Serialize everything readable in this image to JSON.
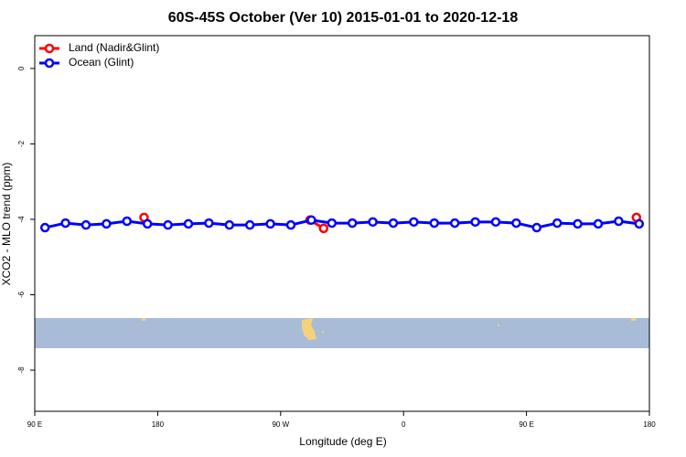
{
  "chart_data": {
    "type": "line",
    "title": "60S-45S October (Ver 10)   2015-01-01 to 2020-12-18",
    "x_label": "Longitude (deg E)",
    "y_label": "XCO2 - MLO trend (ppm)",
    "xlim": [
      90,
      540
    ],
    "ylim": [
      -9.09,
      0.87
    ],
    "xticks": [
      {
        "value": 90,
        "label": "90 E"
      },
      {
        "value": 180,
        "label": "180"
      },
      {
        "value": 270,
        "label": "90 W"
      },
      {
        "value": 360,
        "label": "0"
      },
      {
        "value": 450,
        "label": "90 E"
      },
      {
        "value": 540,
        "label": "180"
      }
    ],
    "yticks": [
      0,
      -2,
      -4,
      -6,
      -8
    ],
    "legend_position": "top-left",
    "series": [
      {
        "name": "Land (Nadir&Glint)",
        "color": "#ff0000",
        "x": [
          170,
          null,
          291.5,
          301.5,
          null,
          530.5
        ],
        "values": [
          -3.95,
          null,
          -4.02,
          -4.24,
          null,
          -3.95
        ]
      },
      {
        "name": "Ocean (Glint)",
        "color": "#0000ff",
        "x": [
          97.5,
          112.5,
          127.5,
          142.5,
          157.5,
          172.5,
          187.5,
          202.5,
          217.5,
          232.5,
          247.5,
          262.5,
          277.5,
          292.5,
          307.5,
          322.5,
          337.5,
          352.5,
          367.5,
          382.5,
          397.5,
          412.5,
          427.5,
          442.5,
          457.5,
          472.5,
          487.5,
          502.5,
          517.5,
          532.5
        ],
        "values": [
          -4.22,
          -4.1,
          -4.15,
          -4.12,
          -4.05,
          -4.12,
          -4.15,
          -4.12,
          -4.1,
          -4.15,
          -4.15,
          -4.12,
          -4.15,
          -4.02,
          -4.1,
          -4.1,
          -4.07,
          -4.1,
          -4.07,
          -4.1,
          -4.1,
          -4.07,
          -4.07,
          -4.1,
          -4.22,
          -4.1,
          -4.12,
          -4.12,
          -4.05,
          -4.12
        ]
      }
    ]
  }
}
